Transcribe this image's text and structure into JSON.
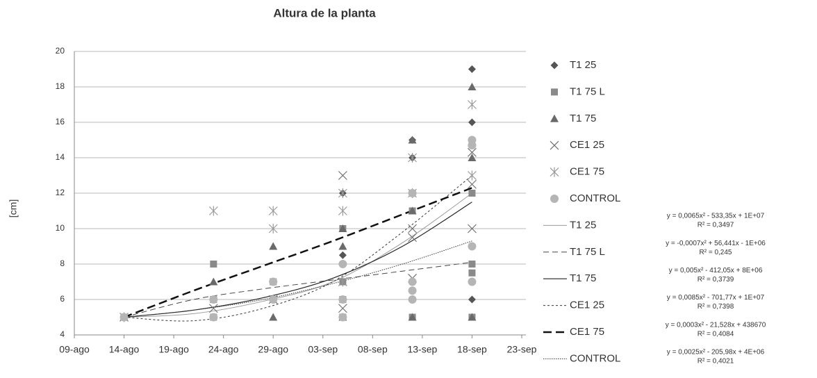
{
  "chart_data": {
    "type": "scatter",
    "title": "Altura de la planta",
    "y_label": "[cm]",
    "xlim": [
      41130,
      41175
    ],
    "xticks": [
      {
        "value": 41130,
        "label": "09-ago"
      },
      {
        "value": 41135,
        "label": "14-ago"
      },
      {
        "value": 41140,
        "label": "19-ago"
      },
      {
        "value": 41145,
        "label": "24-ago"
      },
      {
        "value": 41150,
        "label": "29-ago"
      },
      {
        "value": 41155,
        "label": "03-sep"
      },
      {
        "value": 41160,
        "label": "08-sep"
      },
      {
        "value": 41165,
        "label": "13-sep"
      },
      {
        "value": 41170,
        "label": "18-sep"
      },
      {
        "value": 41175,
        "label": "23-sep"
      }
    ],
    "ylim": [
      4,
      20
    ],
    "yticks": [
      4,
      6,
      8,
      10,
      12,
      14,
      16,
      18,
      20
    ],
    "grid": true,
    "series": [
      {
        "name": "T1 25",
        "marker": "diamond",
        "color": "#555555",
        "x": [
          41135,
          41157,
          41157,
          41164,
          41164,
          41170,
          41170,
          41170
        ],
        "values": [
          5,
          12,
          8.5,
          15,
          14,
          19,
          16,
          6
        ]
      },
      {
        "name": "T1 75 L",
        "marker": "square",
        "color": "#8a8a8a",
        "x": [
          41135,
          41144,
          41144,
          41144,
          41150,
          41150,
          41157,
          41157,
          41157,
          41157,
          41164,
          41164,
          41164,
          41170,
          41170,
          41170,
          41170
        ],
        "values": [
          5,
          8,
          6,
          5,
          7,
          6,
          10,
          7,
          6,
          5,
          11,
          12,
          5,
          12,
          8,
          7.5,
          5
        ]
      },
      {
        "name": "T1 75",
        "marker": "triangle",
        "color": "#6a6a6a",
        "x": [
          41135,
          41144,
          41150,
          41150,
          41157,
          41157,
          41157,
          41164,
          41164,
          41164,
          41170,
          41170,
          41170
        ],
        "values": [
          5,
          7,
          9,
          5,
          9,
          10,
          5,
          15,
          11,
          5,
          18,
          14,
          5
        ]
      },
      {
        "name": "CE1 25",
        "marker": "cross",
        "color": "#707070",
        "x": [
          41135,
          41144,
          41150,
          41157,
          41157,
          41157,
          41164,
          41164,
          41164,
          41170,
          41170,
          41170
        ],
        "values": [
          5,
          5.5,
          6,
          13,
          7,
          5.5,
          10,
          9.5,
          7.2,
          14.3,
          12.5,
          10
        ]
      },
      {
        "name": "CE1 75",
        "marker": "asterisk",
        "color": "#999999",
        "x": [
          41135,
          41144,
          41150,
          41150,
          41157,
          41157,
          41157,
          41164,
          41164,
          41170,
          41170
        ],
        "values": [
          5,
          11,
          11,
          10,
          12,
          11,
          7,
          14,
          12,
          17,
          13
        ]
      },
      {
        "name": "CONTROL",
        "marker": "circle",
        "color": "#b5b5b5",
        "x": [
          41135,
          41144,
          41144,
          41150,
          41150,
          41157,
          41157,
          41157,
          41164,
          41164,
          41164,
          41164,
          41170,
          41170,
          41170,
          41170
        ],
        "values": [
          5,
          6,
          5,
          7,
          6,
          8,
          6,
          5,
          12,
          7,
          6.5,
          6,
          15,
          14.7,
          9,
          7
        ]
      }
    ],
    "trendlines": [
      {
        "name": "T1 25",
        "color": "#9a9a9a",
        "width": 1,
        "dash": "none",
        "x": [
          41135,
          41142,
          41149,
          41156,
          41163,
          41170
        ],
        "values": [
          5,
          5.2,
          5.9,
          7.0,
          9.2,
          12.0
        ],
        "equation": "y = 0,0065x² - 533,35x + 1E+07",
        "r2": "R² = 0,3497"
      },
      {
        "name": "T1 75 L",
        "color": "#444444",
        "width": 1,
        "dash": "8,5",
        "x": [
          41135,
          41142,
          41149,
          41156,
          41163,
          41170
        ],
        "values": [
          5,
          6.0,
          6.6,
          7.1,
          7.6,
          8.1
        ],
        "equation": "y = -0,0007x² + 56,441x - 1E+06",
        "r2": "R² = 0,245"
      },
      {
        "name": "T1 75",
        "color": "#222222",
        "width": 1.2,
        "dash": "none",
        "x": [
          41135,
          41142,
          41149,
          41156,
          41163,
          41170
        ],
        "values": [
          5,
          5.4,
          6.1,
          7.2,
          9.0,
          11.5
        ],
        "equation": "y = 0,005x² - 412,05x + 8E+06",
        "r2": "R² = 0,3739"
      },
      {
        "name": "CE1 25",
        "color": "#333333",
        "width": 1,
        "dash": "3,3",
        "x": [
          41135,
          41142,
          41149,
          41156,
          41163,
          41170
        ],
        "values": [
          5,
          4.8,
          5.5,
          7.0,
          9.8,
          13.0
        ],
        "equation": "y = 0,0085x² - 701,77x + 1E+07",
        "r2": "R² = 0,7398"
      },
      {
        "name": "CE1 75",
        "color": "#111111",
        "width": 2.5,
        "dash": "12,6",
        "x": [
          41135,
          41142,
          41149,
          41156,
          41163,
          41170
        ],
        "values": [
          5,
          6.5,
          7.9,
          9.3,
          10.8,
          12.3
        ],
        "equation": "y = 0,0003x² - 21,528x + 438670",
        "r2": "R² = 0,4084"
      },
      {
        "name": "CONTROL",
        "color": "#333333",
        "width": 1,
        "dash": "1.5,1.5",
        "x": [
          41135,
          41142,
          41149,
          41156,
          41163,
          41170
        ],
        "values": [
          5,
          5.4,
          6.0,
          6.9,
          8.0,
          9.3
        ],
        "equation": "y = 0,0025x² - 205,98x + 4E+06",
        "r2": "R² = 0,4021"
      }
    ]
  }
}
